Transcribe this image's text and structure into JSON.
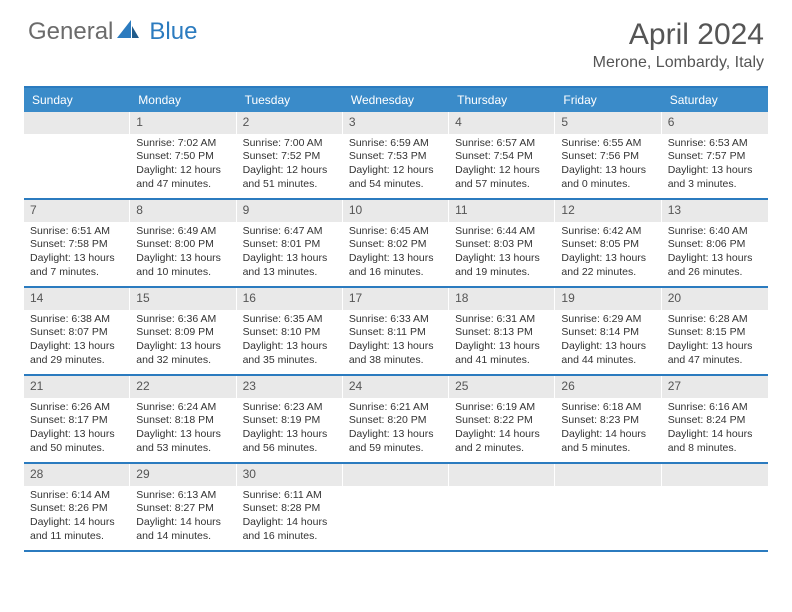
{
  "logo": {
    "text1": "General",
    "text2": "Blue"
  },
  "title": "April 2024",
  "location": "Merone, Lombardy, Italy",
  "colors": {
    "header_bg": "#3a8bc9",
    "rule": "#2b7bbf",
    "daynum_bg": "#e9e9e9",
    "text": "#333333",
    "title_text": "#555555"
  },
  "day_headers": [
    "Sunday",
    "Monday",
    "Tuesday",
    "Wednesday",
    "Thursday",
    "Friday",
    "Saturday"
  ],
  "weeks": [
    [
      {
        "n": "",
        "sunrise": "",
        "sunset": "",
        "daylight": ""
      },
      {
        "n": "1",
        "sunrise": "7:02 AM",
        "sunset": "7:50 PM",
        "daylight": "12 hours and 47 minutes."
      },
      {
        "n": "2",
        "sunrise": "7:00 AM",
        "sunset": "7:52 PM",
        "daylight": "12 hours and 51 minutes."
      },
      {
        "n": "3",
        "sunrise": "6:59 AM",
        "sunset": "7:53 PM",
        "daylight": "12 hours and 54 minutes."
      },
      {
        "n": "4",
        "sunrise": "6:57 AM",
        "sunset": "7:54 PM",
        "daylight": "12 hours and 57 minutes."
      },
      {
        "n": "5",
        "sunrise": "6:55 AM",
        "sunset": "7:56 PM",
        "daylight": "13 hours and 0 minutes."
      },
      {
        "n": "6",
        "sunrise": "6:53 AM",
        "sunset": "7:57 PM",
        "daylight": "13 hours and 3 minutes."
      }
    ],
    [
      {
        "n": "7",
        "sunrise": "6:51 AM",
        "sunset": "7:58 PM",
        "daylight": "13 hours and 7 minutes."
      },
      {
        "n": "8",
        "sunrise": "6:49 AM",
        "sunset": "8:00 PM",
        "daylight": "13 hours and 10 minutes."
      },
      {
        "n": "9",
        "sunrise": "6:47 AM",
        "sunset": "8:01 PM",
        "daylight": "13 hours and 13 minutes."
      },
      {
        "n": "10",
        "sunrise": "6:45 AM",
        "sunset": "8:02 PM",
        "daylight": "13 hours and 16 minutes."
      },
      {
        "n": "11",
        "sunrise": "6:44 AM",
        "sunset": "8:03 PM",
        "daylight": "13 hours and 19 minutes."
      },
      {
        "n": "12",
        "sunrise": "6:42 AM",
        "sunset": "8:05 PM",
        "daylight": "13 hours and 22 minutes."
      },
      {
        "n": "13",
        "sunrise": "6:40 AM",
        "sunset": "8:06 PM",
        "daylight": "13 hours and 26 minutes."
      }
    ],
    [
      {
        "n": "14",
        "sunrise": "6:38 AM",
        "sunset": "8:07 PM",
        "daylight": "13 hours and 29 minutes."
      },
      {
        "n": "15",
        "sunrise": "6:36 AM",
        "sunset": "8:09 PM",
        "daylight": "13 hours and 32 minutes."
      },
      {
        "n": "16",
        "sunrise": "6:35 AM",
        "sunset": "8:10 PM",
        "daylight": "13 hours and 35 minutes."
      },
      {
        "n": "17",
        "sunrise": "6:33 AM",
        "sunset": "8:11 PM",
        "daylight": "13 hours and 38 minutes."
      },
      {
        "n": "18",
        "sunrise": "6:31 AM",
        "sunset": "8:13 PM",
        "daylight": "13 hours and 41 minutes."
      },
      {
        "n": "19",
        "sunrise": "6:29 AM",
        "sunset": "8:14 PM",
        "daylight": "13 hours and 44 minutes."
      },
      {
        "n": "20",
        "sunrise": "6:28 AM",
        "sunset": "8:15 PM",
        "daylight": "13 hours and 47 minutes."
      }
    ],
    [
      {
        "n": "21",
        "sunrise": "6:26 AM",
        "sunset": "8:17 PM",
        "daylight": "13 hours and 50 minutes."
      },
      {
        "n": "22",
        "sunrise": "6:24 AM",
        "sunset": "8:18 PM",
        "daylight": "13 hours and 53 minutes."
      },
      {
        "n": "23",
        "sunrise": "6:23 AM",
        "sunset": "8:19 PM",
        "daylight": "13 hours and 56 minutes."
      },
      {
        "n": "24",
        "sunrise": "6:21 AM",
        "sunset": "8:20 PM",
        "daylight": "13 hours and 59 minutes."
      },
      {
        "n": "25",
        "sunrise": "6:19 AM",
        "sunset": "8:22 PM",
        "daylight": "14 hours and 2 minutes."
      },
      {
        "n": "26",
        "sunrise": "6:18 AM",
        "sunset": "8:23 PM",
        "daylight": "14 hours and 5 minutes."
      },
      {
        "n": "27",
        "sunrise": "6:16 AM",
        "sunset": "8:24 PM",
        "daylight": "14 hours and 8 minutes."
      }
    ],
    [
      {
        "n": "28",
        "sunrise": "6:14 AM",
        "sunset": "8:26 PM",
        "daylight": "14 hours and 11 minutes."
      },
      {
        "n": "29",
        "sunrise": "6:13 AM",
        "sunset": "8:27 PM",
        "daylight": "14 hours and 14 minutes."
      },
      {
        "n": "30",
        "sunrise": "6:11 AM",
        "sunset": "8:28 PM",
        "daylight": "14 hours and 16 minutes."
      },
      {
        "n": "",
        "sunrise": "",
        "sunset": "",
        "daylight": ""
      },
      {
        "n": "",
        "sunrise": "",
        "sunset": "",
        "daylight": ""
      },
      {
        "n": "",
        "sunrise": "",
        "sunset": "",
        "daylight": ""
      },
      {
        "n": "",
        "sunrise": "",
        "sunset": "",
        "daylight": ""
      }
    ]
  ],
  "labels": {
    "sunrise": "Sunrise:",
    "sunset": "Sunset:",
    "daylight": "Daylight:"
  }
}
